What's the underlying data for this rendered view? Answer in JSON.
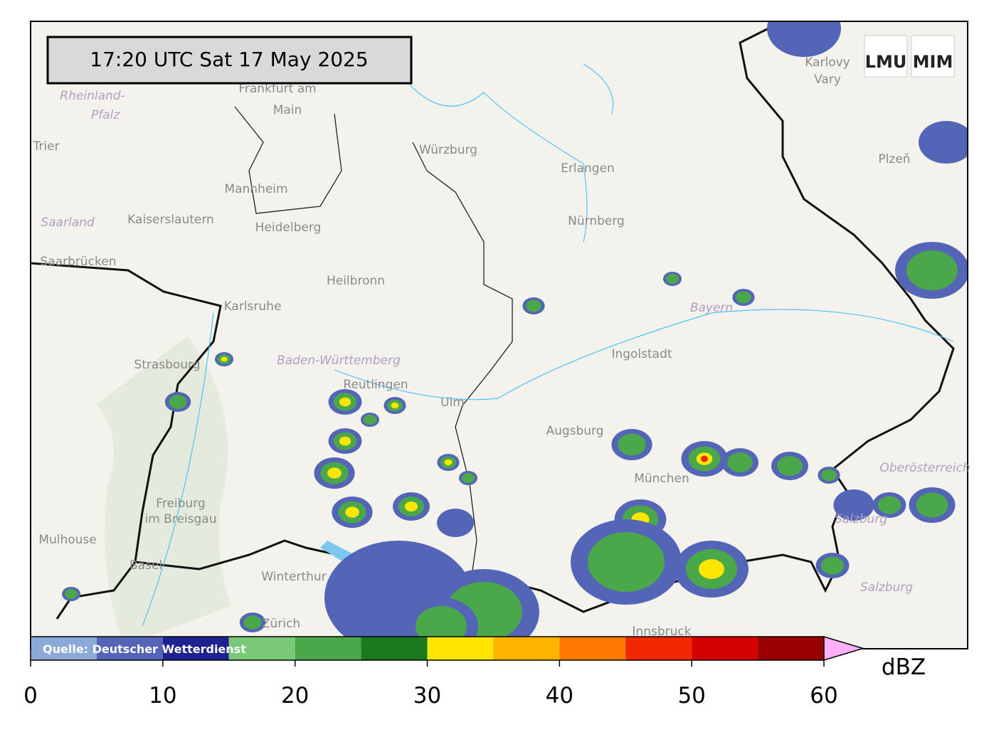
{
  "header": {
    "timestamp": "17:20 UTC  Sat 17 May 2025"
  },
  "logos": [
    "LMU",
    "MIM"
  ],
  "map": {
    "places": [
      "Frankfurt am",
      "Main",
      "Rheinland-",
      "Pfalz",
      "Trier",
      "Mannheim",
      "Kaiserslautern",
      "Heidelberg",
      "Saarland",
      "Saarbrücken",
      "Karlsruhe",
      "Strasbourg",
      "Heilbronn",
      "Würzburg",
      "Erlangen",
      "Nürnberg",
      "Bayern",
      "Ingolstadt",
      "Baden-Württemberg",
      "Reutlingen",
      "Ulm",
      "Augsburg",
      "München",
      "Freiburg",
      "im Breisgau",
      "Mulhouse",
      "Basel",
      "Winterthur",
      "Zürich",
      "Innsbruck",
      "Salzburg",
      "Salzburg",
      "Oberösterreich",
      "Plzeň",
      "Karlovy",
      "Vary"
    ]
  },
  "colorbar": {
    "bounds": [
      0,
      5,
      10,
      15,
      20,
      25,
      30,
      35,
      40,
      45,
      50,
      55,
      60
    ],
    "colors": [
      "#8aa9d8",
      "#5465b8",
      "#1e2290",
      "#79c979",
      "#4aa84a",
      "#1b7a1b",
      "#ffe600",
      "#ffb400",
      "#ff7800",
      "#f02800",
      "#d50000",
      "#9a0000"
    ],
    "extend_color": "#ffb0f8",
    "ticks": [
      0,
      10,
      20,
      30,
      40,
      50,
      60
    ],
    "unit": "dBZ",
    "source": "Quelle: Deutscher Wetterdienst"
  }
}
